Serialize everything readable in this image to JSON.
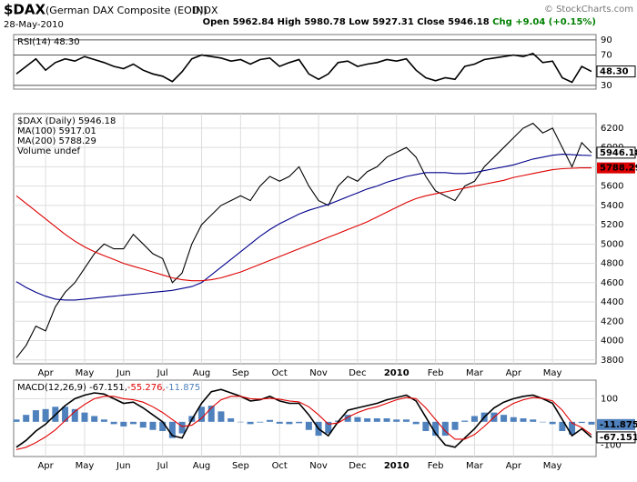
{
  "header": {
    "title": "$DAX",
    "subtitle": "(German DAX Composite (EOD))",
    "exchange": "INDX",
    "date": "28-May-2010",
    "quote": [
      "Open 5962.84",
      "High 5980.78",
      "Low 5927.31",
      "Close 5946.18",
      "Chg +9.04 (+0.15%)"
    ],
    "credit": "© StockCharts.com"
  },
  "chart_data": [
    {
      "type": "line",
      "ylim": [
        25,
        97
      ],
      "yticks": [
        30,
        70,
        90
      ],
      "grid": true,
      "series": [
        {
          "name": "RSI(14) 48.30",
          "color": "#000000",
          "last_label": "48.30",
          "values": [
            45,
            55,
            65,
            50,
            60,
            65,
            62,
            68,
            64,
            60,
            55,
            52,
            58,
            50,
            45,
            42,
            35,
            48,
            65,
            70,
            68,
            66,
            62,
            64,
            58,
            64,
            66,
            55,
            60,
            64,
            45,
            38,
            45,
            60,
            62,
            55,
            58,
            60,
            64,
            62,
            65,
            50,
            40,
            36,
            40,
            38,
            55,
            58,
            64,
            66,
            68,
            70,
            68,
            72,
            60,
            62,
            40,
            34,
            55,
            48.3
          ]
        }
      ]
    },
    {
      "type": "line",
      "ylim": [
        3760,
        6350
      ],
      "yticks": [
        3800,
        4000,
        4200,
        4400,
        4600,
        4800,
        5000,
        5200,
        5400,
        5600,
        5800,
        6000,
        6200
      ],
      "grid": true,
      "xticks": [
        "Apr",
        "May",
        "Jun",
        "Jul",
        "Aug",
        "Sep",
        "Oct",
        "Nov",
        "Dec",
        "2010",
        "Feb",
        "Mar",
        "Apr",
        "May"
      ],
      "notes": [
        "Volume undef"
      ],
      "series": [
        {
          "name": "$DAX (Daily) 5946.18",
          "color": "#000000",
          "last_label": "5946.18",
          "values": [
            3820,
            3950,
            4150,
            4100,
            4350,
            4500,
            4600,
            4750,
            4900,
            5000,
            4950,
            4950,
            5100,
            5000,
            4900,
            4850,
            4600,
            4700,
            5000,
            5200,
            5300,
            5400,
            5450,
            5500,
            5450,
            5600,
            5700,
            5650,
            5700,
            5800,
            5600,
            5450,
            5400,
            5600,
            5700,
            5650,
            5750,
            5800,
            5900,
            5950,
            6000,
            5900,
            5700,
            5550,
            5500,
            5450,
            5600,
            5650,
            5800,
            5900,
            6000,
            6100,
            6200,
            6250,
            6150,
            6200,
            6000,
            5800,
            6050,
            5946.18
          ]
        },
        {
          "name": "MA(100) 5917.01",
          "color": "#00008b",
          "values": [
            4610,
            4550,
            4500,
            4460,
            4430,
            4420,
            4420,
            4430,
            4440,
            4450,
            4460,
            4470,
            4480,
            4490,
            4500,
            4510,
            4520,
            4540,
            4560,
            4600,
            4680,
            4760,
            4840,
            4920,
            5000,
            5080,
            5150,
            5210,
            5260,
            5310,
            5350,
            5380,
            5410,
            5450,
            5490,
            5530,
            5570,
            5600,
            5640,
            5670,
            5700,
            5720,
            5740,
            5740,
            5740,
            5730,
            5730,
            5740,
            5760,
            5780,
            5800,
            5820,
            5850,
            5880,
            5900,
            5920,
            5930,
            5925,
            5920,
            5917.01
          ]
        },
        {
          "name": "MA(200) 5788.29",
          "color": "#dd0000",
          "last_label": "5788.29",
          "values": [
            5500,
            5420,
            5340,
            5260,
            5180,
            5100,
            5030,
            4970,
            4920,
            4880,
            4840,
            4800,
            4770,
            4740,
            4710,
            4680,
            4650,
            4630,
            4620,
            4620,
            4630,
            4650,
            4680,
            4710,
            4750,
            4790,
            4830,
            4870,
            4910,
            4950,
            4990,
            5030,
            5070,
            5110,
            5150,
            5190,
            5230,
            5280,
            5330,
            5380,
            5430,
            5470,
            5500,
            5520,
            5540,
            5560,
            5580,
            5600,
            5620,
            5640,
            5660,
            5690,
            5710,
            5730,
            5750,
            5770,
            5780,
            5785,
            5790,
            5788.29
          ]
        }
      ]
    },
    {
      "type": "line",
      "ylim": [
        -150,
        180
      ],
      "yticks": [
        -100,
        100
      ],
      "grid": true,
      "xticks": [
        "Apr",
        "May",
        "Jun",
        "Jul",
        "Aug",
        "Sep",
        "Oct",
        "Nov",
        "Dec",
        "2010",
        "Feb",
        "Mar",
        "Apr",
        "May"
      ],
      "series": [
        {
          "name": "MACD(12,26,9) -67.151,",
          "color": "#000000",
          "last_label": "-67.151",
          "values": [
            -110,
            -80,
            -40,
            -10,
            30,
            70,
            100,
            115,
            125,
            120,
            100,
            80,
            85,
            60,
            30,
            0,
            -60,
            -70,
            10,
            80,
            130,
            140,
            125,
            110,
            90,
            95,
            110,
            90,
            80,
            80,
            30,
            -30,
            -60,
            0,
            50,
            60,
            70,
            80,
            95,
            105,
            115,
            90,
            20,
            -50,
            -100,
            -110,
            -70,
            -30,
            20,
            60,
            85,
            100,
            110,
            115,
            100,
            80,
            10,
            -60,
            -30,
            -67.151
          ]
        },
        {
          "name": "-55.276,",
          "color": "#e00000",
          "values": [
            -120,
            -110,
            -90,
            -65,
            -35,
            5,
            45,
            75,
            100,
            110,
            110,
            100,
            95,
            85,
            65,
            40,
            10,
            -20,
            -15,
            15,
            60,
            95,
            110,
            110,
            100,
            98,
            102,
            98,
            90,
            86,
            65,
            30,
            -10,
            -5,
            20,
            40,
            55,
            65,
            80,
            95,
            105,
            100,
            60,
            10,
            -40,
            -75,
            -75,
            -55,
            -20,
            20,
            55,
            80,
            95,
            105,
            102,
            90,
            50,
            -5,
            -25,
            -55.276
          ]
        },
        {
          "name": "-11.875",
          "color": "#4f81bd",
          "type": "bar",
          "last_label": "-11.875",
          "values": [
            10,
            30,
            50,
            55,
            65,
            65,
            55,
            40,
            25,
            10,
            -10,
            -20,
            -10,
            -25,
            -35,
            -40,
            -70,
            -50,
            25,
            65,
            70,
            45,
            15,
            0,
            -10,
            -3,
            8,
            -8,
            -10,
            -6,
            -35,
            -60,
            -50,
            5,
            30,
            20,
            15,
            15,
            15,
            10,
            10,
            -10,
            -40,
            -60,
            -60,
            -35,
            5,
            25,
            40,
            40,
            30,
            20,
            15,
            10,
            -2,
            -10,
            -40,
            -55,
            -5,
            -11.875
          ]
        }
      ]
    }
  ]
}
